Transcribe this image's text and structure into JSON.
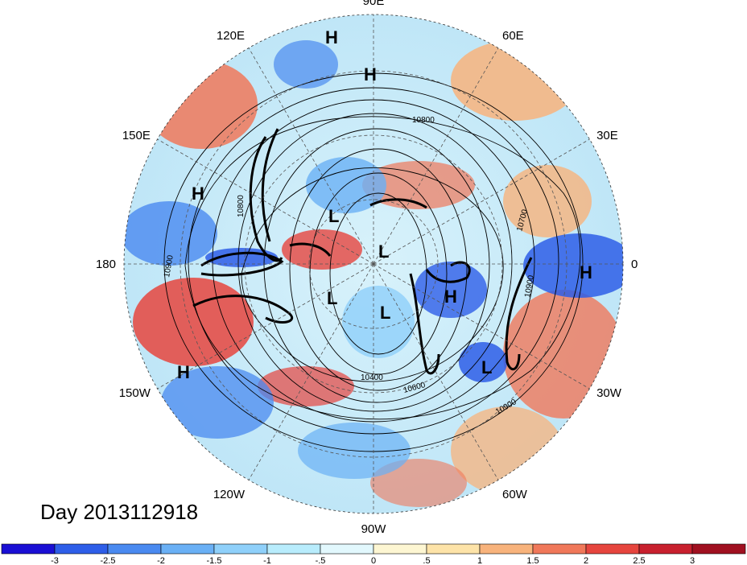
{
  "date": "Day 2013112918",
  "longitude_labels": [
    {
      "text": "90E",
      "lon": 90
    },
    {
      "text": "60E",
      "lon": 60
    },
    {
      "text": "30E",
      "lon": 30
    },
    {
      "text": "0",
      "lon": 0
    },
    {
      "text": "30W",
      "lon": -30
    },
    {
      "text": "60W",
      "lon": -60
    },
    {
      "text": "90W",
      "lon": -90
    },
    {
      "text": "120W",
      "lon": -120
    },
    {
      "text": "150W",
      "lon": -150
    },
    {
      "text": "180",
      "lon": 180
    },
    {
      "text": "150E",
      "lon": 150
    },
    {
      "text": "120E",
      "lon": 120
    }
  ],
  "pressure_centers": [
    {
      "type": "H"
    },
    {
      "type": "H"
    },
    {
      "type": "H"
    },
    {
      "type": "H"
    },
    {
      "type": "H"
    },
    {
      "type": "H"
    },
    {
      "type": "L"
    },
    {
      "type": "L"
    },
    {
      "type": "L"
    },
    {
      "type": "L"
    },
    {
      "type": "L"
    }
  ],
  "contour_labels": [
    "10800",
    "10700",
    "10800",
    "10900",
    "10900",
    "10400",
    "10600",
    "10900"
  ],
  "colorbar": {
    "ticks": [
      "-3",
      "-2.5",
      "-2",
      "-1.5",
      "-1",
      "-.5",
      "0",
      ".5",
      "1",
      "1.5",
      "2",
      "2.5",
      "3"
    ],
    "colors": [
      "#1a0fd4",
      "#2e5ee8",
      "#4a8af0",
      "#6ab0f5",
      "#8fd0fa",
      "#b8ecfc",
      "#e2f8fd",
      "#fdf6d2",
      "#fde3a8",
      "#f8b37c",
      "#f0785a",
      "#e6453e",
      "#c8202e",
      "#a01020"
    ]
  }
}
